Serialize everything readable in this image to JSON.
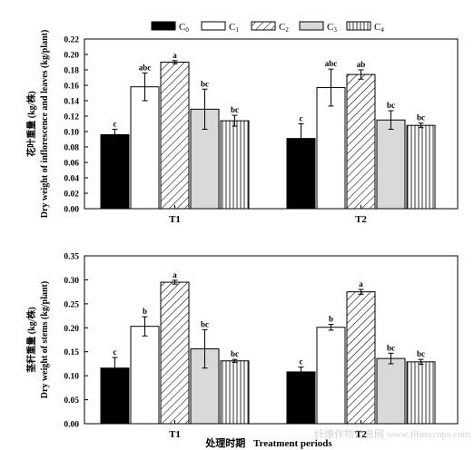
{
  "chart_data": [
    {
      "type": "bar",
      "ylabel_cn": "花叶重量 (kg/株)",
      "ylabel": "Dry weight of inflorescence and leaves (kg/plant)",
      "categories": [
        "T1",
        "T2"
      ],
      "ylim": [
        0,
        0.22
      ],
      "yticks": [
        "0.00",
        "0.02",
        "0.04",
        "0.06",
        "0.08",
        "0.10",
        "0.12",
        "0.14",
        "0.16",
        "0.18",
        "0.20",
        "0.22"
      ],
      "series": [
        {
          "name": "C",
          "sub": "0",
          "values": [
            0.096,
            0.091
          ],
          "errors": [
            0.007,
            0.019
          ],
          "letters": [
            "c",
            "c"
          ]
        },
        {
          "name": "C",
          "sub": "1",
          "values": [
            0.158,
            0.157
          ],
          "errors": [
            0.018,
            0.024
          ],
          "letters": [
            "abc",
            "abc"
          ]
        },
        {
          "name": "C",
          "sub": "2",
          "values": [
            0.19,
            0.174
          ],
          "errors": [
            0.002,
            0.006
          ],
          "letters": [
            "a",
            "ab"
          ]
        },
        {
          "name": "C",
          "sub": "3",
          "values": [
            0.129,
            0.115
          ],
          "errors": [
            0.026,
            0.012
          ],
          "letters": [
            "bc",
            "bc"
          ]
        },
        {
          "name": "C",
          "sub": "4",
          "values": [
            0.114,
            0.108
          ],
          "errors": [
            0.007,
            0.003
          ],
          "letters": [
            "bc",
            "bc"
          ]
        }
      ]
    },
    {
      "type": "bar",
      "ylabel_cn": "茎秆重量 (kg/株)",
      "ylabel": "Dry weight of stems (kg/plant)",
      "categories": [
        "T1",
        "T2"
      ],
      "ylim": [
        0,
        0.35
      ],
      "yticks": [
        "0.00",
        "0.05",
        "0.10",
        "0.15",
        "0.20",
        "0.25",
        "0.30",
        "0.35"
      ],
      "xlabel_cn": "处理时期",
      "xlabel": "Treatment periods",
      "series": [
        {
          "name": "C",
          "sub": "0",
          "values": [
            0.116,
            0.108
          ],
          "errors": [
            0.022,
            0.01
          ],
          "letters": [
            "c",
            "c"
          ]
        },
        {
          "name": "C",
          "sub": "1",
          "values": [
            0.203,
            0.201
          ],
          "errors": [
            0.02,
            0.006
          ],
          "letters": [
            "b",
            "b"
          ]
        },
        {
          "name": "C",
          "sub": "2",
          "values": [
            0.295,
            0.275
          ],
          "errors": [
            0.004,
            0.005
          ],
          "letters": [
            "a",
            "a"
          ]
        },
        {
          "name": "C",
          "sub": "3",
          "values": [
            0.156,
            0.136
          ],
          "errors": [
            0.04,
            0.011
          ],
          "letters": [
            "bc",
            "bc"
          ]
        },
        {
          "name": "C",
          "sub": "4",
          "values": [
            0.131,
            0.129
          ],
          "errors": [
            0.003,
            0.005
          ],
          "letters": [
            "bc",
            "bc"
          ]
        }
      ]
    }
  ],
  "legend": {
    "items": [
      {
        "label": "C",
        "sub": "0",
        "pattern": "solid-black"
      },
      {
        "label": "C",
        "sub": "1",
        "pattern": "white"
      },
      {
        "label": "C",
        "sub": "2",
        "pattern": "diagonal-hatch"
      },
      {
        "label": "C",
        "sub": "3",
        "pattern": "grey"
      },
      {
        "label": "C",
        "sub": "4",
        "pattern": "vertical-lines"
      }
    ]
  },
  "watermark": "纤维作物信息网 www.fibercrops.com",
  "colors": {
    "ink": "#000000",
    "c3_fill": "#d9d9d9",
    "paper": "#ffffff"
  }
}
